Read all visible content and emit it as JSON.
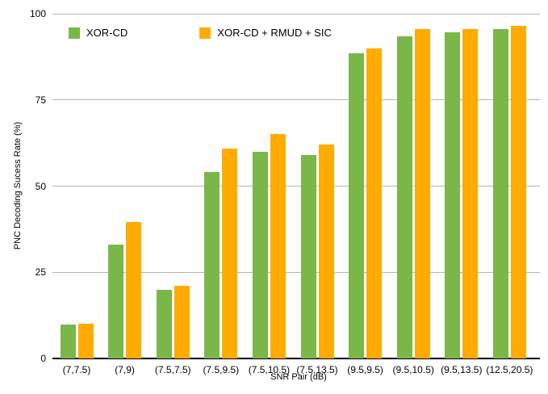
{
  "chart_data": {
    "type": "bar",
    "title": "",
    "xlabel": "SNR Pair (dB)",
    "ylabel": "PNC Decoding Sucess Rate (%)",
    "ylim": [
      0,
      100
    ],
    "yticks": [
      0,
      25,
      50,
      75,
      100
    ],
    "grid": "horizontal",
    "legend_position": "top-left",
    "categories": [
      "(7,7.5)",
      "(7,9)",
      "(7.5,7.5)",
      "(7.5,9.5)",
      "(7.5,10.5)",
      "(7.5,13.5)",
      "(9.5,9.5)",
      "(9.5,10.5)",
      "(9.5,13.5)",
      "(12.5,20.5)"
    ],
    "series": [
      {
        "name": "XOR-CD",
        "color": "#7AB648",
        "values": [
          9.8,
          33,
          20,
          54,
          60,
          59,
          88.5,
          93.5,
          94.5,
          95.5
        ]
      },
      {
        "name": "XOR-CD + RMUD + SIC",
        "color": "#FFAB00",
        "values": [
          10,
          39.5,
          21,
          61,
          65,
          62,
          90,
          95.5,
          95.5,
          96.5
        ]
      }
    ],
    "colors": {
      "gridline": "#B3B3B3",
      "axis_line": "#000000",
      "text": "#000000",
      "background": "#FFFFFF"
    }
  }
}
